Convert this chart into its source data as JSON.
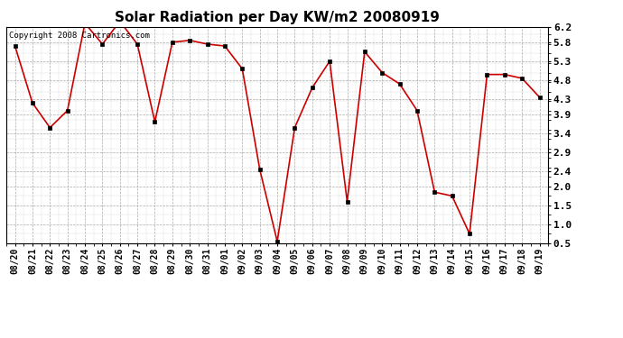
{
  "title": "Solar Radiation per Day KW/m2 20080919",
  "copyright_text": "Copyright 2008 Cartronics.com",
  "dates": [
    "08/20",
    "08/21",
    "08/22",
    "08/23",
    "08/24",
    "08/25",
    "08/26",
    "08/27",
    "08/28",
    "08/29",
    "08/30",
    "08/31",
    "09/01",
    "09/02",
    "09/03",
    "09/04",
    "09/05",
    "09/06",
    "09/07",
    "09/08",
    "09/09",
    "09/10",
    "09/11",
    "09/12",
    "09/13",
    "09/14",
    "09/15",
    "09/16",
    "09/17",
    "09/18",
    "09/19"
  ],
  "values": [
    5.7,
    4.2,
    3.55,
    4.0,
    6.3,
    5.75,
    6.35,
    5.75,
    3.7,
    5.8,
    5.85,
    5.75,
    5.7,
    5.1,
    2.45,
    0.55,
    3.55,
    4.6,
    5.3,
    1.6,
    5.55,
    5.0,
    4.7,
    4.0,
    1.85,
    1.75,
    0.75,
    4.95,
    4.95,
    4.85,
    4.35
  ],
  "line_color": "#cc0000",
  "marker": "s",
  "marker_size": 2.5,
  "bg_color": "#ffffff",
  "plot_bg_color": "#ffffff",
  "grid_color": "#aaaaaa",
  "ylim": [
    0.5,
    6.2
  ],
  "yticks": [
    0.5,
    1.0,
    1.5,
    2.0,
    2.4,
    2.9,
    3.4,
    3.9,
    4.3,
    4.8,
    5.3,
    5.8,
    6.2
  ],
  "title_fontsize": 11,
  "tick_fontsize": 7,
  "copyright_fontsize": 6.5
}
